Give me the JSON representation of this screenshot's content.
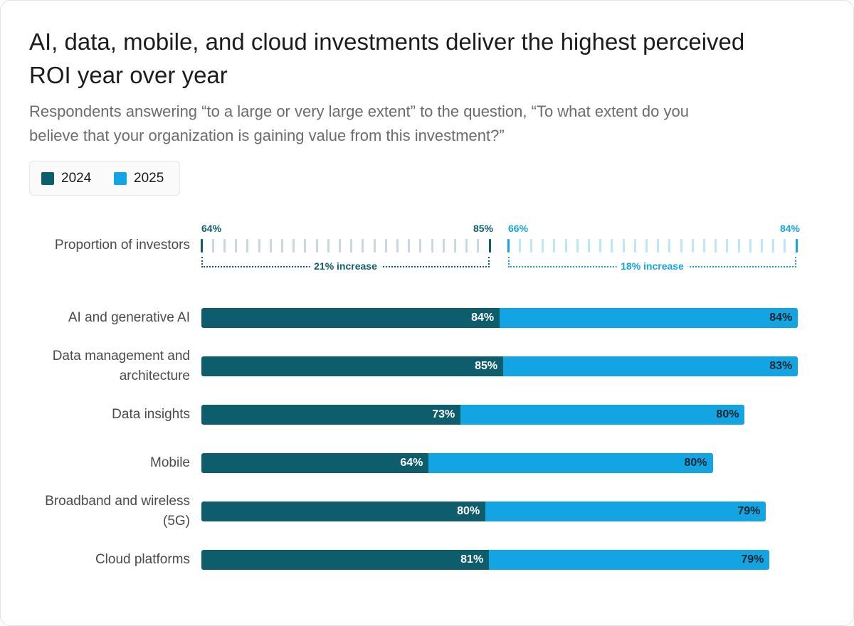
{
  "chart_data": {
    "type": "bar",
    "orientation": "horizontal",
    "stacked": true,
    "title": "AI, data, mobile, and cloud investments deliver the highest perceived ROI year over year",
    "subtitle": "Respondents answering “to a large or very large extent” to the question, “To what extent do you believe that your organization is gaining value from this investment?”",
    "categories": [
      "AI and generative AI",
      "Data management and architecture",
      "Data insights",
      "Mobile",
      "Broadband and wireless (5G)",
      "Cloud platforms"
    ],
    "series": [
      {
        "name": "2024",
        "color": "#0e5d6d",
        "values": [
          84,
          85,
          73,
          64,
          80,
          81
        ],
        "value_labels": [
          "84%",
          "85%",
          "73%",
          "64%",
          "80%",
          "81%"
        ]
      },
      {
        "name": "2025",
        "color": "#13a4e4",
        "values": [
          84,
          83,
          80,
          80,
          79,
          79
        ],
        "value_labels": [
          "84%",
          "83%",
          "80%",
          "80%",
          "79%",
          "79%"
        ]
      }
    ],
    "investors": {
      "label": "Proportion of investors",
      "ranges": [
        {
          "from": 64,
          "to": 85,
          "from_label": "64%",
          "to_label": "85%",
          "note": "21% increase"
        },
        {
          "from": 66,
          "to": 84,
          "from_label": "66%",
          "to_label": "84%",
          "note": "18% increase"
        }
      ]
    }
  }
}
